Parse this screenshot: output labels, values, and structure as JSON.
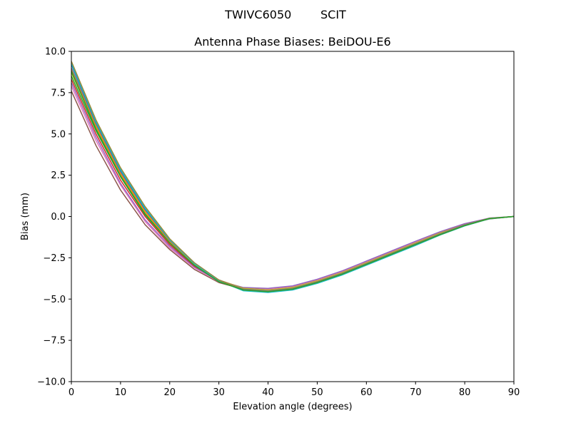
{
  "chart_data": {
    "type": "line",
    "suptitle": "TWIVC6050        SCIT",
    "title": "Antenna Phase Biases: BeiDOU-E6",
    "xlabel": "Elevation angle (degrees)",
    "ylabel": "Bias (mm)",
    "xlim": [
      0,
      90
    ],
    "ylim": [
      -10,
      10
    ],
    "xticks": [
      0,
      10,
      20,
      30,
      40,
      50,
      60,
      70,
      80,
      90
    ],
    "yticks": [
      -10,
      -7.5,
      -5,
      -2.5,
      0,
      2.5,
      5,
      7.5,
      10
    ],
    "ytick_labels": [
      "−10.0",
      "−7.5",
      "−5.0",
      "−2.5",
      "0.0",
      "2.5",
      "5.0",
      "7.5",
      "10.0"
    ],
    "grid": false,
    "x": [
      0,
      5,
      10,
      15,
      20,
      25,
      30,
      35,
      40,
      45,
      50,
      55,
      60,
      65,
      70,
      75,
      80,
      85,
      90
    ],
    "series": [
      {
        "color": "#8c564b",
        "values": [
          7.6,
          4.3,
          1.6,
          -0.5,
          -2.0,
          -3.2,
          -4.0,
          -4.4,
          -4.45,
          -4.3,
          -3.9,
          -3.4,
          -2.8,
          -2.2,
          -1.6,
          -1.0,
          -0.5,
          -0.15,
          0.0
        ]
      },
      {
        "color": "#e377c2",
        "values": [
          7.9,
          4.6,
          1.9,
          -0.3,
          -1.9,
          -3.1,
          -3.95,
          -4.35,
          -4.4,
          -4.25,
          -3.85,
          -3.35,
          -2.75,
          -2.15,
          -1.55,
          -0.95,
          -0.45,
          -0.1,
          0.0
        ]
      },
      {
        "color": "#9467bd",
        "values": [
          8.1,
          4.8,
          2.0,
          -0.2,
          -1.8,
          -3.05,
          -3.9,
          -4.3,
          -4.35,
          -4.2,
          -3.8,
          -3.3,
          -2.7,
          -2.1,
          -1.5,
          -0.92,
          -0.43,
          -0.1,
          0.0
        ]
      },
      {
        "color": "#d62728",
        "values": [
          8.3,
          5.0,
          2.2,
          0.0,
          -1.7,
          -3.0,
          -3.85,
          -4.35,
          -4.45,
          -4.3,
          -3.9,
          -3.4,
          -2.8,
          -2.2,
          -1.6,
          -1.0,
          -0.5,
          -0.12,
          0.0
        ]
      },
      {
        "color": "#2ca02c",
        "values": [
          8.5,
          5.2,
          2.4,
          0.1,
          -1.6,
          -2.95,
          -3.9,
          -4.4,
          -4.5,
          -4.35,
          -3.95,
          -3.45,
          -2.85,
          -2.25,
          -1.65,
          -1.05,
          -0.52,
          -0.13,
          0.0
        ]
      },
      {
        "color": "#bcbd22",
        "values": [
          8.7,
          5.4,
          2.5,
          0.2,
          -1.55,
          -2.9,
          -3.85,
          -4.35,
          -4.45,
          -4.3,
          -3.9,
          -3.4,
          -2.8,
          -2.2,
          -1.6,
          -1.0,
          -0.5,
          -0.12,
          0.0
        ]
      },
      {
        "color": "#ff7f0e",
        "values": [
          8.9,
          5.5,
          2.6,
          0.3,
          -1.5,
          -2.85,
          -3.85,
          -4.4,
          -4.5,
          -4.35,
          -3.95,
          -3.45,
          -2.85,
          -2.25,
          -1.65,
          -1.05,
          -0.5,
          -0.12,
          0.0
        ]
      },
      {
        "color": "#7f7f7f",
        "values": [
          9.0,
          5.6,
          2.7,
          0.4,
          -1.45,
          -2.85,
          -3.85,
          -4.4,
          -4.5,
          -4.35,
          -3.95,
          -3.45,
          -2.85,
          -2.25,
          -1.65,
          -1.05,
          -0.5,
          -0.12,
          0.0
        ]
      },
      {
        "color": "#1f77b4",
        "values": [
          9.2,
          5.7,
          2.8,
          0.45,
          -1.4,
          -2.8,
          -3.85,
          -4.45,
          -4.55,
          -4.4,
          -4.0,
          -3.5,
          -2.9,
          -2.3,
          -1.7,
          -1.1,
          -0.55,
          -0.13,
          0.0
        ]
      },
      {
        "color": "#17becf",
        "values": [
          9.3,
          5.75,
          2.85,
          0.5,
          -1.4,
          -2.85,
          -3.9,
          -4.5,
          -4.6,
          -4.45,
          -4.05,
          -3.55,
          -2.95,
          -2.35,
          -1.75,
          -1.12,
          -0.57,
          -0.14,
          0.0
        ]
      },
      {
        "color": "#9a8a3a",
        "values": [
          9.4,
          5.85,
          2.95,
          0.6,
          -1.35,
          -2.8,
          -3.85,
          -4.45,
          -4.55,
          -4.4,
          -4.0,
          -3.5,
          -2.9,
          -2.3,
          -1.7,
          -1.1,
          -0.55,
          -0.13,
          0.0
        ]
      },
      {
        "color": "#2ca02c",
        "values": [
          8.8,
          5.3,
          2.45,
          0.15,
          -1.6,
          -2.95,
          -3.95,
          -4.45,
          -4.55,
          -4.4,
          -4.0,
          -3.5,
          -2.9,
          -2.3,
          -1.7,
          -1.1,
          -0.55,
          -0.12,
          0.0
        ]
      }
    ]
  }
}
